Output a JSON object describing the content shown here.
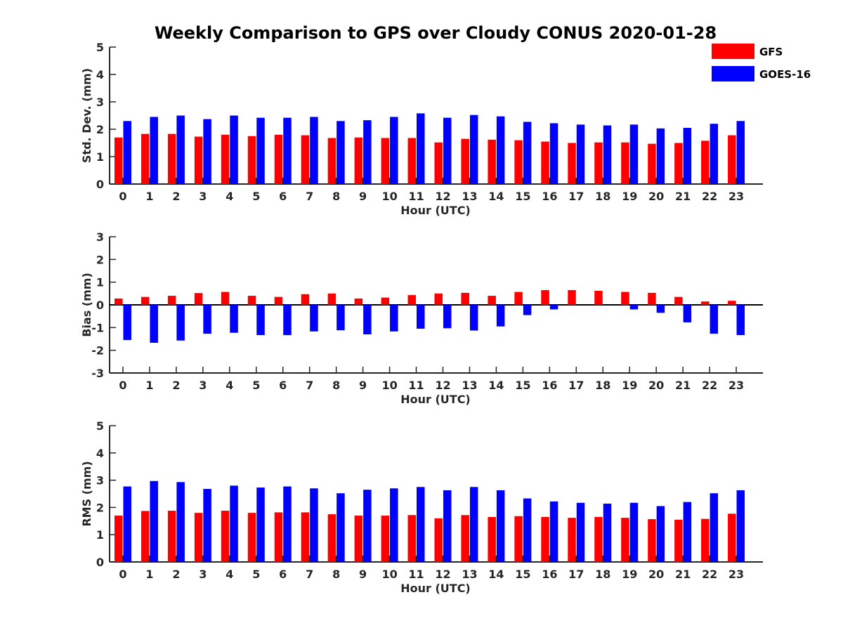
{
  "chart_data": [
    {
      "type": "bar",
      "title": "Weekly Comparison to GPS over Cloudy CONUS 2020-01-28",
      "xlabel": "Hour (UTC)",
      "ylabel": "Std. Dev. (mm)",
      "categories": [
        "0",
        "1",
        "2",
        "3",
        "4",
        "5",
        "6",
        "7",
        "8",
        "9",
        "10",
        "11",
        "12",
        "13",
        "14",
        "15",
        "16",
        "17",
        "18",
        "19",
        "20",
        "21",
        "22",
        "23"
      ],
      "ylim": [
        0,
        5
      ],
      "yticks": [
        0,
        1,
        2,
        3,
        4,
        5
      ],
      "series": [
        {
          "name": "GFS",
          "color": "#ff0000",
          "values": [
            1.7,
            1.83,
            1.83,
            1.73,
            1.8,
            1.75,
            1.8,
            1.78,
            1.68,
            1.7,
            1.68,
            1.68,
            1.52,
            1.65,
            1.62,
            1.6,
            1.55,
            1.5,
            1.52,
            1.52,
            1.47,
            1.5,
            1.58,
            1.78
          ]
        },
        {
          "name": "GOES-16",
          "color": "#0000ff",
          "values": [
            2.3,
            2.45,
            2.5,
            2.37,
            2.5,
            2.42,
            2.42,
            2.45,
            2.3,
            2.33,
            2.45,
            2.58,
            2.42,
            2.52,
            2.47,
            2.27,
            2.22,
            2.17,
            2.14,
            2.17,
            2.03,
            2.05,
            2.2,
            2.3
          ]
        }
      ],
      "legend": "top-right"
    },
    {
      "type": "bar",
      "xlabel": "Hour (UTC)",
      "ylabel": "Bias (mm)",
      "categories": [
        "0",
        "1",
        "2",
        "3",
        "4",
        "5",
        "6",
        "7",
        "8",
        "9",
        "10",
        "11",
        "12",
        "13",
        "14",
        "15",
        "16",
        "17",
        "18",
        "19",
        "20",
        "21",
        "22",
        "23"
      ],
      "ylim": [
        -3,
        3
      ],
      "yticks": [
        -3,
        -2,
        -1,
        0,
        1,
        2,
        3
      ],
      "series": [
        {
          "name": "GFS",
          "color": "#ff0000",
          "values": [
            0.28,
            0.35,
            0.4,
            0.52,
            0.57,
            0.4,
            0.35,
            0.47,
            0.5,
            0.28,
            0.32,
            0.43,
            0.5,
            0.53,
            0.4,
            0.57,
            0.65,
            0.65,
            0.62,
            0.57,
            0.53,
            0.35,
            0.15,
            0.18
          ]
        },
        {
          "name": "GOES-16",
          "color": "#0000ff",
          "values": [
            -1.55,
            -1.67,
            -1.57,
            -1.27,
            -1.23,
            -1.33,
            -1.33,
            -1.17,
            -1.12,
            -1.3,
            -1.17,
            -1.05,
            -1.03,
            -1.13,
            -0.95,
            -0.45,
            -0.2,
            0.0,
            0.0,
            -0.2,
            -0.35,
            -0.77,
            -1.27,
            -1.33
          ]
        }
      ]
    },
    {
      "type": "bar",
      "xlabel": "Hour (UTC)",
      "ylabel": "RMS (mm)",
      "categories": [
        "0",
        "1",
        "2",
        "3",
        "4",
        "5",
        "6",
        "7",
        "8",
        "9",
        "10",
        "11",
        "12",
        "13",
        "14",
        "15",
        "16",
        "17",
        "18",
        "19",
        "20",
        "21",
        "22",
        "23"
      ],
      "ylim": [
        0,
        5
      ],
      "yticks": [
        0,
        1,
        2,
        3,
        4,
        5
      ],
      "series": [
        {
          "name": "GFS",
          "color": "#ff0000",
          "values": [
            1.7,
            1.87,
            1.88,
            1.8,
            1.88,
            1.8,
            1.82,
            1.82,
            1.75,
            1.7,
            1.7,
            1.72,
            1.6,
            1.72,
            1.65,
            1.68,
            1.65,
            1.62,
            1.65,
            1.62,
            1.57,
            1.55,
            1.58,
            1.77
          ]
        },
        {
          "name": "GOES-16",
          "color": "#0000ff",
          "values": [
            2.77,
            2.97,
            2.93,
            2.68,
            2.8,
            2.73,
            2.77,
            2.7,
            2.52,
            2.65,
            2.7,
            2.75,
            2.63,
            2.75,
            2.63,
            2.33,
            2.22,
            2.17,
            2.14,
            2.17,
            2.05,
            2.2,
            2.52,
            2.63
          ]
        }
      ]
    }
  ]
}
